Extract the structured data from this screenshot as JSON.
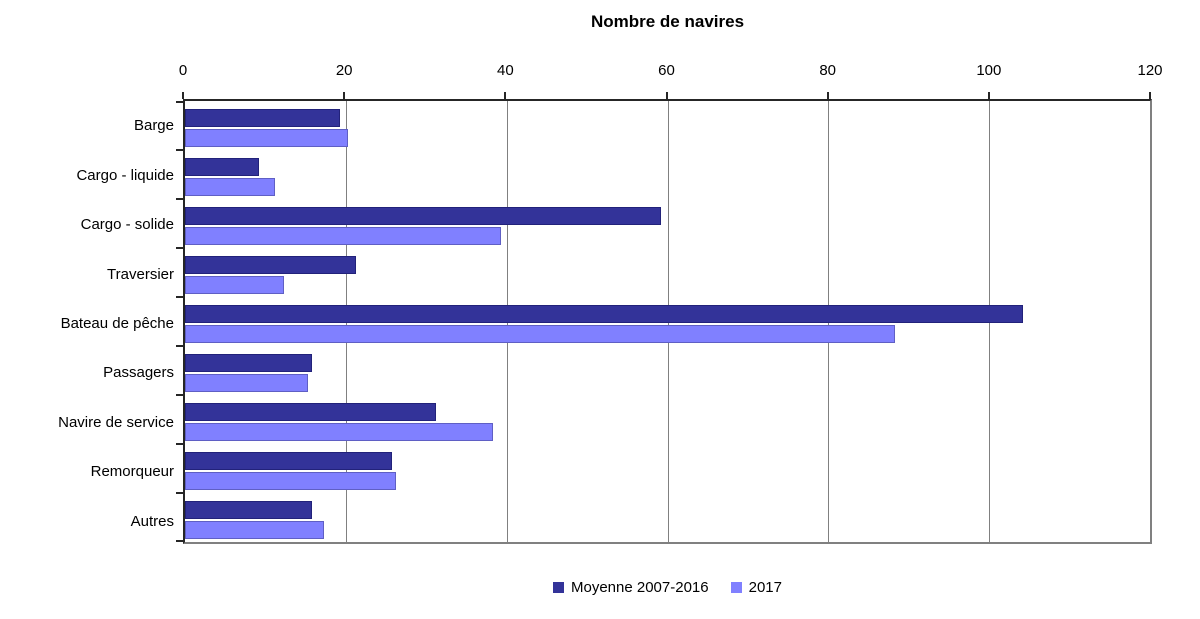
{
  "title": "Nombre de navires",
  "colors": {
    "series1_fill": "#333399",
    "series1_border": "#22227A",
    "series2_fill": "#8080FF",
    "series2_border": "#5F5FC4",
    "gridline": "#808080",
    "axis": "#262626",
    "frame": "#808080"
  },
  "chart_data": {
    "type": "bar",
    "orientation": "horizontal",
    "title": "Nombre de navires",
    "categories": [
      "Barge",
      "Cargo - liquide",
      "Cargo - solide",
      "Traversier",
      "Bateau de pêche",
      "Passagers",
      "Navire de service",
      "Remorqueur",
      "Autres"
    ],
    "series": [
      {
        "name": "Moyenne 2007-2016",
        "color": "#333399",
        "values": [
          19,
          9,
          59,
          21,
          104,
          15.5,
          31,
          25.5,
          15.5
        ]
      },
      {
        "name": "2017",
        "color": "#8080FF",
        "values": [
          20,
          11,
          39,
          12,
          88,
          15,
          38,
          26,
          17
        ]
      }
    ],
    "xlabel": "",
    "ylabel": "",
    "xlim": [
      0,
      120
    ],
    "x_ticks": [
      0,
      20,
      40,
      60,
      80,
      100,
      120
    ],
    "grid": true,
    "axis_position": "top",
    "legend_position": "bottom"
  }
}
